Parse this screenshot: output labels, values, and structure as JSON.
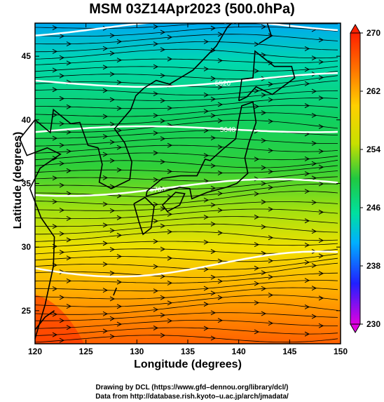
{
  "title": "MSM 03Z14Apr2023 (500.0hPa)",
  "xlabel": "Longitude (degrees)",
  "ylabel": "Latitude  (degrees)",
  "credit_line1": "Drawing by DCL (https://www.gfd–dennou.org/library/dcl/)",
  "credit_line2": "Data from http://database.rish.kyoto–u.ac.jp/arch/jmadata/",
  "map": {
    "lon_range": [
      120,
      150
    ],
    "lat_range": [
      22.4,
      47.6
    ],
    "lon_ticks": [
      "120",
      "125",
      "130",
      "135",
      "140",
      "145",
      "150"
    ],
    "lat_ticks": [
      "25",
      "30",
      "35",
      "40",
      "45"
    ],
    "colorbar": {
      "labels": [
        "270",
        "262",
        "254",
        "246",
        "238",
        "230"
      ],
      "min": 230,
      "max": 270,
      "colors": [
        "#e000e0",
        "#2020ff",
        "#00b0ff",
        "#00e0a0",
        "#20c840",
        "#c8e000",
        "#ffd000",
        "#ff7000",
        "#ff2000"
      ]
    },
    "contour_labels": [
      "5400",
      "5520",
      "5640",
      "5760"
    ]
  }
}
